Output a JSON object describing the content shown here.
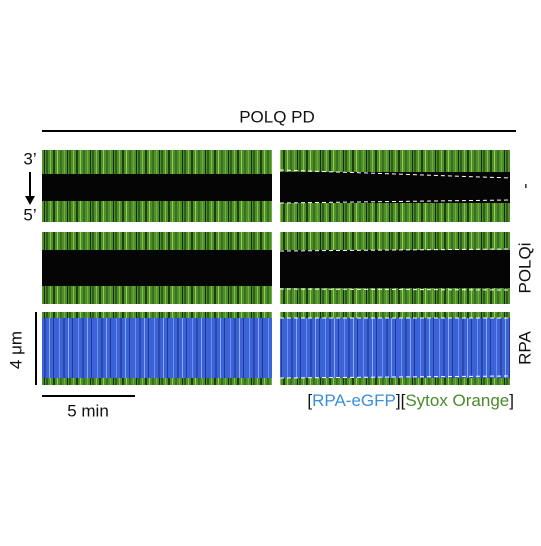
{
  "title": "POLQ PD",
  "strand_top": "3’",
  "strand_bottom": "5’",
  "rows": [
    {
      "label": "-"
    },
    {
      "label": "POLQi"
    },
    {
      "label": "RPA"
    }
  ],
  "scale_bars": {
    "y": "4 μm",
    "x": "5 min"
  },
  "legend": {
    "open": "[",
    "rpa": "RPA-eGFP",
    "mid": "][",
    "sytox": "Sytox Orange",
    "close": "]"
  }
}
